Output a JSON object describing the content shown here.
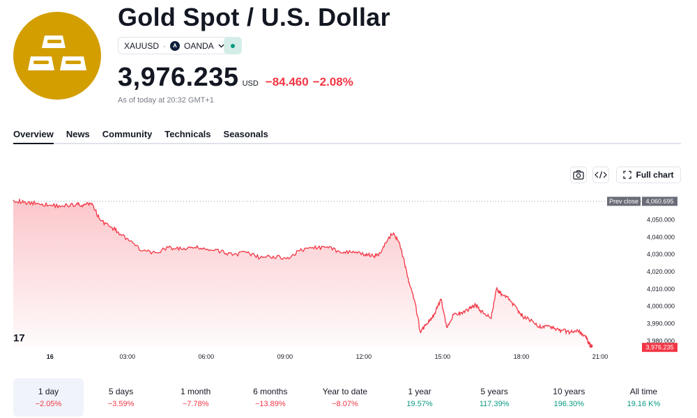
{
  "header": {
    "title": "Gold Spot / U.S. Dollar",
    "symbol": "XAUUSD",
    "separator": "·",
    "broker": "OANDA",
    "price": "3,976.235",
    "currency": "USD",
    "change": "−84.460",
    "change_pct": "−2.08%",
    "as_of": "As of today at 20:32 GMT+1"
  },
  "tabs": [
    "Overview",
    "News",
    "Community",
    "Technicals",
    "Seasonals"
  ],
  "toolbar": {
    "full_chart_label": "Full chart"
  },
  "colors": {
    "negative": "#f23645",
    "positive": "#089981",
    "logo": "#d39e00"
  },
  "chart_data": {
    "type": "area",
    "x_tick_labels": [
      "16",
      "03:00",
      "06:00",
      "09:00",
      "12:00",
      "15:00",
      "18:00",
      "21:00"
    ],
    "y_tick_labels": [
      "4,050.000",
      "4,040.000",
      "4,030.000",
      "4,020.000",
      "4,010.000",
      "4,000.000",
      "3,990.000",
      "3,980.000"
    ],
    "y_ticks": [
      4050,
      4040,
      4030,
      4020,
      4010,
      4000,
      3990,
      3980
    ],
    "ylim": [
      3976.5,
      4063.5
    ],
    "x_hours_range": [
      -1.4,
      21.0
    ],
    "prev_close": {
      "label": "Prev close",
      "value": 4060.695,
      "display": "4,060.695"
    },
    "last": {
      "value": 3976.235,
      "display": "3,976.235"
    },
    "x": [
      -1.4,
      -1.0,
      -0.5,
      0.0,
      0.5,
      1.0,
      1.3,
      1.6,
      1.9,
      2.3,
      2.6,
      3.0,
      3.5,
      4.0,
      4.5,
      5.0,
      5.5,
      6.0,
      6.5,
      7.0,
      7.5,
      8.0,
      8.5,
      9.0,
      9.5,
      10.0,
      10.5,
      11.0,
      11.5,
      12.0,
      12.3,
      12.6,
      12.9,
      13.1,
      13.3,
      13.5,
      13.7,
      13.9,
      14.1,
      14.3,
      14.5,
      14.7,
      14.9,
      15.1,
      15.4,
      15.7,
      16.0,
      16.2,
      16.5,
      16.8,
      17.0,
      17.2,
      17.5,
      17.8,
      18.0,
      18.3,
      18.6,
      18.9,
      19.2,
      19.5,
      19.8,
      20.1,
      20.4,
      20.6
    ],
    "y": [
      4061.5,
      4060.0,
      4059.5,
      4058.5,
      4058.0,
      4059.0,
      4058.5,
      4059.5,
      4050.0,
      4046.0,
      4043.0,
      4038.0,
      4032.0,
      4031.0,
      4034.0,
      4033.0,
      4034.0,
      4033.0,
      4031.5,
      4030.0,
      4031.0,
      4028.0,
      4029.0,
      4027.5,
      4032.0,
      4034.0,
      4034.0,
      4032.0,
      4031.0,
      4030.0,
      4029.0,
      4031.0,
      4040.0,
      4042.0,
      4037.0,
      4025.0,
      4012.0,
      4002.0,
      3985.0,
      3989.5,
      3992.0,
      3998.0,
      4004.0,
      3988.0,
      3996.0,
      3995.5,
      3999.0,
      4001.0,
      3996.0,
      3993.0,
      4010.0,
      4007.0,
      4004.0,
      3998.0,
      3994.0,
      3992.0,
      3988.0,
      3989.0,
      3987.0,
      3986.0,
      3985.0,
      3986.0,
      3982.0,
      3977.0
    ]
  },
  "periods": [
    {
      "label": "1 day",
      "value": "−2.05%",
      "sign": "neg"
    },
    {
      "label": "5 days",
      "value": "−3.59%",
      "sign": "neg"
    },
    {
      "label": "1 month",
      "value": "−7.78%",
      "sign": "neg"
    },
    {
      "label": "6 months",
      "value": "−13.89%",
      "sign": "neg"
    },
    {
      "label": "Year to date",
      "value": "−8.07%",
      "sign": "neg"
    },
    {
      "label": "1 year",
      "value": "19.57%",
      "sign": "pos"
    },
    {
      "label": "5 years",
      "value": "117.39%",
      "sign": "pos"
    },
    {
      "label": "10 years",
      "value": "196.30%",
      "sign": "pos"
    },
    {
      "label": "All time",
      "value": "19.16 K%",
      "sign": "pos"
    }
  ]
}
